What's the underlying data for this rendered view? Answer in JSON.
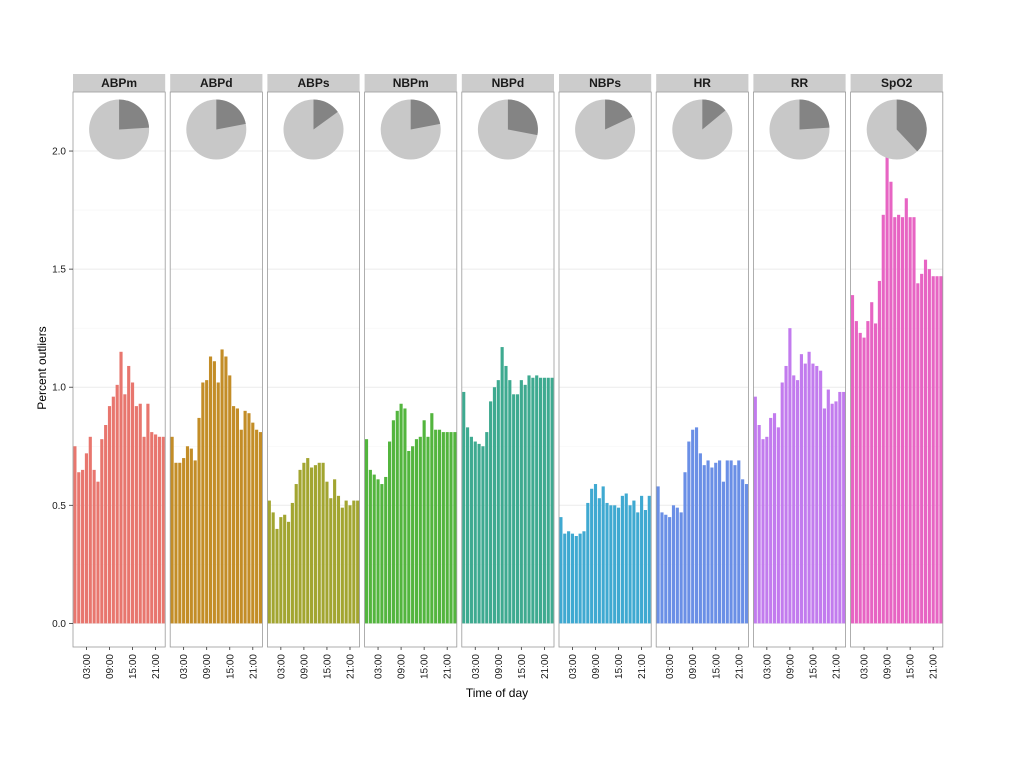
{
  "chart_data": {
    "type": "bar",
    "ylabel": "Percent outliers",
    "xlabel": "Time of day",
    "ylim": [
      -0.1,
      2.25
    ],
    "y_ticks": [
      0.0,
      0.5,
      1.0,
      1.5,
      2.0
    ],
    "y_tick_labels": [
      "0.0",
      "0.5",
      "1.0",
      "1.5",
      "2.0"
    ],
    "x_tick_hours": [
      3,
      9,
      15,
      21
    ],
    "x_tick_labels": [
      "03:00",
      "09:00",
      "15:00",
      "21:00"
    ],
    "hours": [
      0,
      1,
      2,
      3,
      4,
      5,
      6,
      7,
      8,
      9,
      10,
      11,
      12,
      13,
      14,
      15,
      16,
      17,
      18,
      19,
      20,
      21,
      22,
      23
    ],
    "grid": true,
    "pie_colors": {
      "background": "#c8c8c8",
      "slice": "#848484"
    },
    "facets": [
      {
        "name": "ABPm",
        "color": "#E8766E",
        "pie_fraction": 0.24,
        "values": [
          0.75,
          0.64,
          0.65,
          0.72,
          0.79,
          0.65,
          0.6,
          0.78,
          0.84,
          0.92,
          0.96,
          1.01,
          1.15,
          0.97,
          1.09,
          1.02,
          0.92,
          0.93,
          0.79,
          0.93,
          0.81,
          0.8,
          0.79,
          0.79
        ]
      },
      {
        "name": "ABPd",
        "color": "#C38D27",
        "pie_fraction": 0.22,
        "values": [
          0.79,
          0.68,
          0.68,
          0.7,
          0.75,
          0.74,
          0.69,
          0.87,
          1.02,
          1.03,
          1.13,
          1.11,
          1.02,
          1.16,
          1.13,
          1.05,
          0.92,
          0.91,
          0.82,
          0.9,
          0.89,
          0.85,
          0.82,
          0.81
        ]
      },
      {
        "name": "ABPs",
        "color": "#A2A530",
        "pie_fraction": 0.15,
        "values": [
          0.52,
          0.47,
          0.4,
          0.45,
          0.46,
          0.43,
          0.51,
          0.59,
          0.65,
          0.68,
          0.7,
          0.66,
          0.67,
          0.68,
          0.68,
          0.6,
          0.53,
          0.61,
          0.54,
          0.49,
          0.52,
          0.5,
          0.52,
          0.52
        ]
      },
      {
        "name": "NBPm",
        "color": "#53B53E",
        "pie_fraction": 0.22,
        "values": [
          0.78,
          0.65,
          0.63,
          0.61,
          0.59,
          0.62,
          0.77,
          0.86,
          0.9,
          0.93,
          0.91,
          0.73,
          0.75,
          0.78,
          0.79,
          0.86,
          0.79,
          0.89,
          0.82,
          0.82,
          0.81,
          0.81,
          0.81,
          0.81
        ]
      },
      {
        "name": "NBPd",
        "color": "#3EAA90",
        "pie_fraction": 0.28,
        "values": [
          0.98,
          0.83,
          0.79,
          0.77,
          0.76,
          0.75,
          0.81,
          0.94,
          1.0,
          1.03,
          1.17,
          1.09,
          1.03,
          0.97,
          0.97,
          1.03,
          1.01,
          1.05,
          1.04,
          1.05,
          1.04,
          1.04,
          1.04,
          1.04
        ]
      },
      {
        "name": "NBPs",
        "color": "#3FA9D1",
        "pie_fraction": 0.18,
        "values": [
          0.45,
          0.38,
          0.39,
          0.38,
          0.37,
          0.38,
          0.39,
          0.51,
          0.57,
          0.59,
          0.53,
          0.58,
          0.51,
          0.5,
          0.5,
          0.49,
          0.54,
          0.55,
          0.5,
          0.52,
          0.47,
          0.54,
          0.48,
          0.54
        ]
      },
      {
        "name": "HR",
        "color": "#6A8FE6",
        "pie_fraction": 0.14,
        "values": [
          0.58,
          0.47,
          0.46,
          0.45,
          0.5,
          0.49,
          0.47,
          0.64,
          0.77,
          0.82,
          0.83,
          0.72,
          0.67,
          0.69,
          0.66,
          0.68,
          0.69,
          0.6,
          0.69,
          0.69,
          0.67,
          0.69,
          0.61,
          0.59
        ]
      },
      {
        "name": "RR",
        "color": "#C27BEE",
        "pie_fraction": 0.24,
        "values": [
          0.96,
          0.84,
          0.78,
          0.79,
          0.87,
          0.89,
          0.83,
          1.02,
          1.09,
          1.25,
          1.05,
          1.03,
          1.14,
          1.1,
          1.15,
          1.1,
          1.09,
          1.07,
          0.91,
          0.99,
          0.93,
          0.94,
          0.98,
          0.98
        ]
      },
      {
        "name": "SpO2",
        "color": "#E764C3",
        "pie_fraction": 0.38,
        "values": [
          1.39,
          1.28,
          1.23,
          1.21,
          1.28,
          1.36,
          1.27,
          1.45,
          1.73,
          1.99,
          1.87,
          1.72,
          1.73,
          1.72,
          1.8,
          1.72,
          1.72,
          1.44,
          1.48,
          1.54,
          1.5,
          1.47,
          1.47,
          1.47
        ]
      }
    ]
  }
}
